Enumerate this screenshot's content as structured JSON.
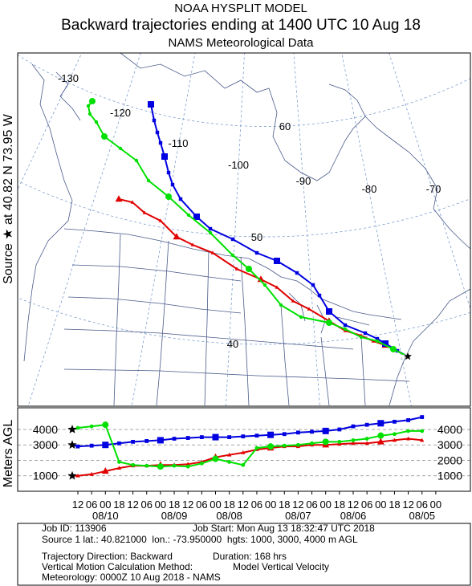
{
  "header": {
    "title": "NOAA HYSPLIT MODEL",
    "subtitle": "Backward trajectories ending at 1400 UTC 10 Aug 18",
    "meteorology": "NAMS Meteorological Data"
  },
  "map": {
    "source_label": "Source ★ at 40.82 N 73.95 W",
    "longitude_labels": [
      "-130",
      "-120",
      "-110",
      "-100",
      "-90",
      "-80",
      "-70"
    ],
    "latitude_labels": [
      "60",
      "50",
      "40"
    ]
  },
  "chart_data": {
    "type": "line",
    "ylabel": "Meters AGL",
    "ylim": [
      0,
      5400
    ],
    "yticks": [
      1000,
      2000,
      3000,
      4000
    ],
    "grid": true,
    "source_heights": [
      1000,
      3000,
      4000
    ],
    "categories": [
      "12",
      "06",
      "00",
      "18",
      "12",
      "06",
      "00",
      "18",
      "12",
      "06",
      "00",
      "18",
      "12",
      "06",
      "00",
      "18",
      "12",
      "06",
      "00",
      "18",
      "12",
      "06",
      "00",
      "18",
      "12",
      "06",
      "00"
    ],
    "date_labels": [
      null,
      null,
      "08/10",
      null,
      null,
      null,
      null,
      "08/09",
      null,
      null,
      null,
      "08/08",
      null,
      null,
      null,
      null,
      "08/07",
      null,
      null,
      null,
      "08/06",
      null,
      null,
      null,
      null,
      "08/05",
      null
    ],
    "series": [
      {
        "name": "1000",
        "color": "#e00000",
        "marker": "triangle",
        "values": [
          1000,
          1100,
          1300,
          1500,
          1650,
          1650,
          1700,
          1700,
          1750,
          1900,
          2200,
          2350,
          2500,
          2700,
          2800,
          2900,
          2900,
          3000,
          3000,
          3050,
          3100,
          3100,
          3200,
          3300,
          3400,
          3300,
          null
        ]
      },
      {
        "name": "3000",
        "color": "#0000e0",
        "marker": "square",
        "values": [
          2900,
          2950,
          3000,
          3100,
          3200,
          3250,
          3300,
          3400,
          3450,
          3500,
          3500,
          3500,
          3550,
          3600,
          3650,
          3700,
          3800,
          3850,
          3900,
          4000,
          4200,
          4300,
          4400,
          4500,
          4600,
          4800,
          null
        ]
      },
      {
        "name": "4000",
        "color": "#00e000",
        "marker": "circle",
        "values": [
          4100,
          4200,
          4300,
          1900,
          1700,
          1650,
          1600,
          1650,
          1600,
          1800,
          2100,
          1900,
          1700,
          2800,
          2900,
          2950,
          3000,
          3100,
          3200,
          3200,
          3300,
          3400,
          3600,
          3700,
          3900,
          3900,
          null
        ]
      }
    ]
  },
  "info": {
    "job_id": "Job ID: 113906",
    "job_start": "Job Start: Mon Aug 13 18:32:47 UTC 2018",
    "source": "Source 1 lat.: 40.821000  lon.: -73.950000  hgts: 1000, 3000, 4000 m AGL",
    "direction": "Trajectory Direction: Backward",
    "duration": "Duration: 168 hrs",
    "method": "Vertical Motion Calculation Method:",
    "method_value": "Model Vertical Velocity",
    "meteorology": "Meteorology: 0000Z 10 Aug 2018 - NAMS"
  }
}
